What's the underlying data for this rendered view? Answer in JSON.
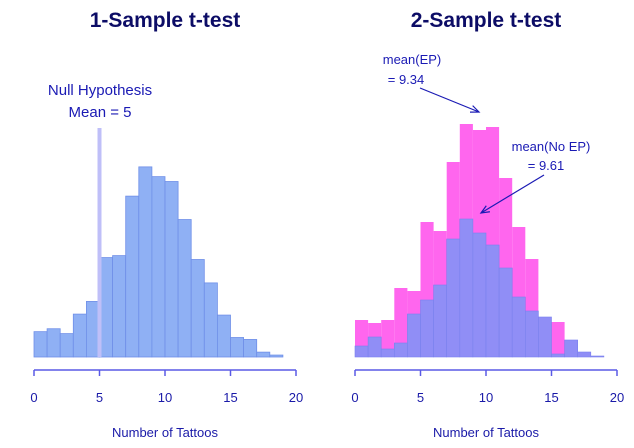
{
  "chart_data": [
    {
      "type": "bar",
      "title": "1-Sample t-test",
      "xlabel": "Number of Tattoos",
      "ylabel": "",
      "xlim": [
        0,
        20
      ],
      "xticks": [
        "0",
        "5",
        "10",
        "15",
        "20"
      ],
      "bin_width": 1,
      "bin_starts": [
        0,
        1,
        2,
        3,
        4,
        5,
        6,
        7,
        8,
        9,
        10,
        11,
        12,
        13,
        14,
        15,
        16,
        17,
        18
      ],
      "values": [
        26,
        29,
        24,
        44,
        57,
        102,
        104,
        165,
        195,
        185,
        180,
        141,
        100,
        76,
        43,
        20,
        18,
        5,
        2
      ],
      "ylim": [
        0,
        200
      ],
      "colors": {
        "bar": "#8fb0f4",
        "bar_edge": "#6f8fe8",
        "null_line": "#bfbff8",
        "axis": "#5a5ae6"
      },
      "reference_line": {
        "x": 5,
        "label_line1": "Null Hypothesis",
        "label_line2": "Mean = 5"
      }
    },
    {
      "type": "bar",
      "title": "2-Sample t-test",
      "xlabel": "Number of Tattoos",
      "ylabel": "",
      "xlim": [
        0,
        20
      ],
      "xticks": [
        "0",
        "5",
        "10",
        "15",
        "20"
      ],
      "bin_width": 1,
      "bin_starts": [
        0,
        1,
        2,
        3,
        4,
        5,
        6,
        7,
        8,
        9,
        10,
        11,
        12,
        13,
        14,
        15,
        16,
        17,
        18
      ],
      "ylim": [
        0,
        240
      ],
      "series": [
        {
          "name": "EP",
          "color": "#ff66ee",
          "values": [
            37,
            34,
            37,
            69,
            66,
            135,
            126,
            195,
            233,
            227,
            230,
            179,
            130,
            98,
            40,
            35,
            17,
            5,
            1
          ]
        },
        {
          "name": "No EP",
          "color": "#8a90f6",
          "values": [
            11,
            20,
            8,
            14,
            43,
            57,
            72,
            118,
            138,
            124,
            112,
            89,
            60,
            46,
            40,
            3,
            17,
            5,
            1
          ]
        }
      ],
      "colors": {
        "axis": "#5a5ae6",
        "arrow": "#1a1ab4"
      },
      "annotations": [
        {
          "line1": "mean(EP)",
          "line2": "= 9.34",
          "points_to": 9.34
        },
        {
          "line1": "mean(No EP)",
          "line2": "= 9.61",
          "points_to": 9.61
        }
      ]
    }
  ]
}
